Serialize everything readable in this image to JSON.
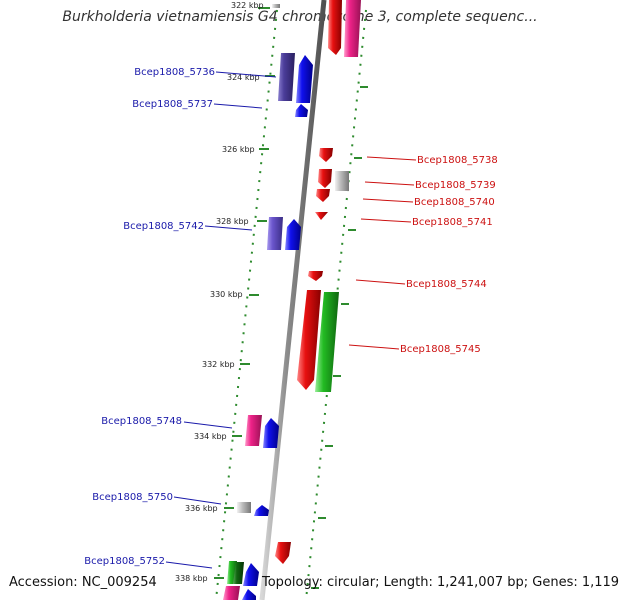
{
  "title": "Burkholderia vietnamiensis G4 chromosome 3, complete sequenc...",
  "footer": {
    "accession": "Accession: NC_009254",
    "topology": "Topology: circular; Length: 1,241,007 bp; Genes: 1,119"
  },
  "colors": {
    "backbone": "#8c8c8c",
    "ticks": "#2e8b2e",
    "left_label": "#1a1aaa",
    "right_label": "#cc1111",
    "blue": "#1010ee",
    "purple": "#4b3d9a",
    "violet": "#6a55cc",
    "red": "#e81010",
    "pink": "#ee2288",
    "green": "#22bb22",
    "gray": "#bbbbbb",
    "darkgreen": "#116611"
  },
  "ticks": [
    {
      "label": "322 kbp"
    },
    {
      "label": "324 kbp"
    },
    {
      "label": "326 kbp"
    },
    {
      "label": "328 kbp"
    },
    {
      "label": "330 kbp"
    },
    {
      "label": "332 kbp"
    },
    {
      "label": "334 kbp"
    },
    {
      "label": "336 kbp"
    },
    {
      "label": "338 kbp"
    }
  ],
  "genes_left": [
    {
      "label": "Bcep1808_5736"
    },
    {
      "label": "Bcep1808_5737"
    },
    {
      "label": "Bcep1808_5742"
    },
    {
      "label": "Bcep1808_5748"
    },
    {
      "label": "Bcep1808_5750"
    },
    {
      "label": "Bcep1808_5752"
    }
  ],
  "genes_right": [
    {
      "label": "Bcep1808_5738"
    },
    {
      "label": "Bcep1808_5739"
    },
    {
      "label": "Bcep1808_5740"
    },
    {
      "label": "Bcep1808_5741"
    },
    {
      "label": "Bcep1808_5744"
    },
    {
      "label": "Bcep1808_5745"
    }
  ]
}
